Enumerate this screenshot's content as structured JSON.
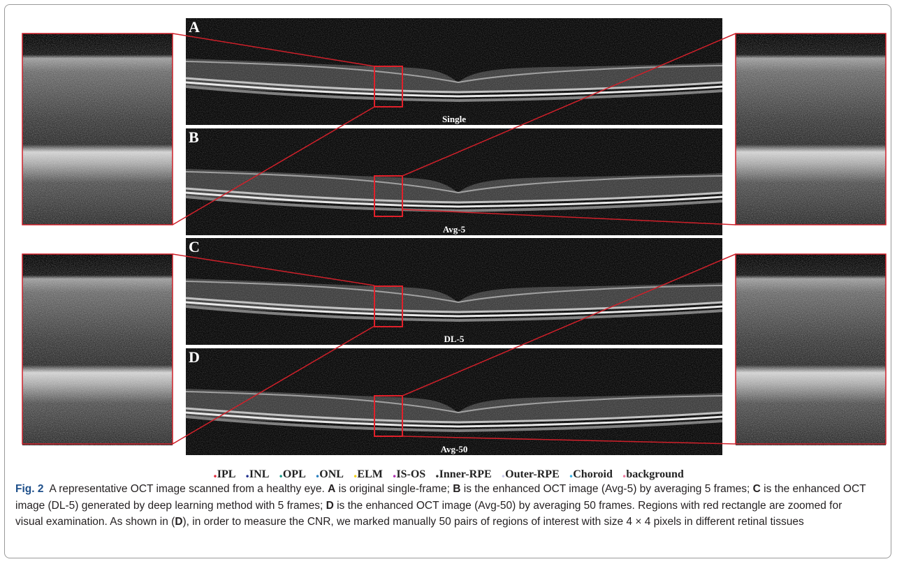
{
  "figure": {
    "panels": [
      {
        "letter": "A",
        "label": "Single"
      },
      {
        "letter": "B",
        "label": "Avg-5"
      },
      {
        "letter": "C",
        "label": "DL-5"
      },
      {
        "letter": "D",
        "label": "Avg-50"
      }
    ],
    "legend": [
      {
        "label": "IPL",
        "color": "#e0283a"
      },
      {
        "label": "INL",
        "color": "#1f2f8f"
      },
      {
        "label": "OPL",
        "color": "#1a9a8a"
      },
      {
        "label": "ONL",
        "color": "#2a7fc0"
      },
      {
        "label": "ELM",
        "color": "#f2d21a"
      },
      {
        "label": "IS-OS",
        "color": "#b030b0"
      },
      {
        "label": "Inner-RPE",
        "color": "#333333"
      },
      {
        "label": "Outer-RPE",
        "color": "#c8c8e8"
      },
      {
        "label": "Choroid",
        "color": "#3cb4e6"
      },
      {
        "label": "background",
        "color": "#f07aa0"
      }
    ]
  },
  "caption": {
    "label": "Fig. 2",
    "segments": [
      {
        "text": "A representative OCT image scanned from a healthy eye. ",
        "bold": false
      },
      {
        "text": "A",
        "bold": true
      },
      {
        "text": " is original single-frame; ",
        "bold": false
      },
      {
        "text": "B",
        "bold": true
      },
      {
        "text": " is the enhanced OCT image (Avg-5) by averaging 5 frames; ",
        "bold": false
      },
      {
        "text": "C",
        "bold": true
      },
      {
        "text": " is the enhanced OCT image (DL-5) generated by deep learning method with 5 frames; ",
        "bold": false
      },
      {
        "text": "D",
        "bold": true
      },
      {
        "text": " is the enhanced OCT image (Avg-50) by averaging 50 frames. Regions with red rectangle are zoomed for visual examination. As shown in (",
        "bold": false
      },
      {
        "text": "D",
        "bold": true
      },
      {
        "text": "), in order to measure the CNR, we marked manually 50 pairs of regions of interest with size 4 × 4 pixels in different retinal tissues",
        "bold": false
      }
    ]
  }
}
